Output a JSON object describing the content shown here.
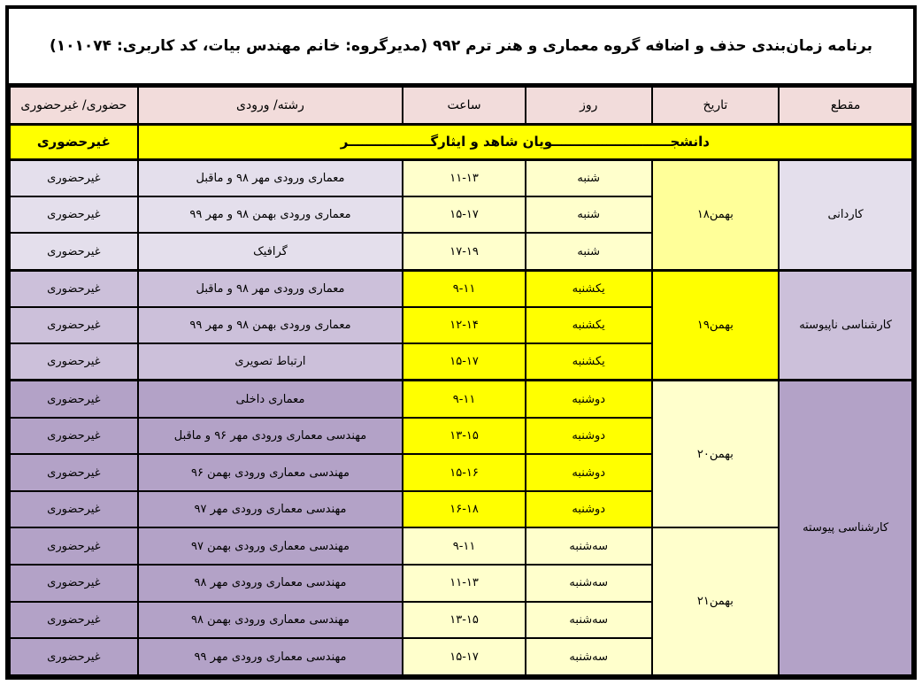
{
  "title": "برنامه زمان‌بندی حذف و اضافه گروه معماری و هنر ترم ۹۹۲ (مدیرگروه: خانم مهندس بیات، کد کاربری: ۱۰۱۰۷۴)",
  "columns": {
    "level": "مقطع",
    "date": "تاریخ",
    "day": "روز",
    "hour": "ساعت",
    "major": "رشته/ ورودی",
    "attendance": "حضوری/ غیرحضوری"
  },
  "special_row": {
    "label": "دانشجــــــــــــــــــــــــــویان شاهد و ایثارگــــــــــــــــــر",
    "attendance": "غیرحضوری"
  },
  "levels": [
    {
      "label": "کاردانی"
    },
    {
      "label": "کارشناسی ناپیوسته"
    },
    {
      "label": "کارشناسی پیوسته"
    }
  ],
  "dates": [
    {
      "label": "۱۸بهمن"
    },
    {
      "label": "۱۹بهمن"
    },
    {
      "label": "۲۰بهمن"
    },
    {
      "label": "۲۱بهمن"
    }
  ],
  "rows": [
    {
      "major": "معماری ورودی مهر ۹۸ و ماقبل",
      "hour": "۱۱-۱۳",
      "day": "شنبه",
      "attendance": "غیرحضوری"
    },
    {
      "major": "معماری ورودی بهمن ۹۸ و مهر ۹۹",
      "hour": "۱۵-۱۷",
      "day": "شنبه",
      "attendance": "غیرحضوری"
    },
    {
      "major": "گرافیک",
      "hour": "۱۷-۱۹",
      "day": "شنبه",
      "attendance": "غیرحضوری"
    },
    {
      "major": "معماری ورودی مهر ۹۸ و ماقبل",
      "hour": "۹-۱۱",
      "day": "یکشنبه",
      "attendance": "غیرحضوری"
    },
    {
      "major": "معماری ورودی بهمن ۹۸ و مهر ۹۹",
      "hour": "۱۲-۱۴",
      "day": "یکشنبه",
      "attendance": "غیرحضوری"
    },
    {
      "major": "ارتباط تصویری",
      "hour": "۱۵-۱۷",
      "day": "یکشنبه",
      "attendance": "غیرحضوری"
    },
    {
      "major": "معماری داخلی",
      "hour": "۹-۱۱",
      "day": "دوشنبه",
      "attendance": "غیرحضوری"
    },
    {
      "major": "مهندسی معماری ورودی مهر ۹۶ و ماقبل",
      "hour": "۱۳-۱۵",
      "day": "دوشنبه",
      "attendance": "غیرحضوری"
    },
    {
      "major": "مهندسی معماری ورودی بهمن ۹۶",
      "hour": "۱۵-۱۶",
      "day": "دوشنبه",
      "attendance": "غیرحضوری"
    },
    {
      "major": "مهندسی معماری ورودی  مهر ۹۷",
      "hour": "۱۶-۱۸",
      "day": "دوشنبه",
      "attendance": "غیرحضوری"
    },
    {
      "major": "مهندسی معماری ورودی بهمن ۹۷",
      "hour": "۹-۱۱",
      "day": "سه‌شنبه",
      "attendance": "غیرحضوری"
    },
    {
      "major": "مهندسی معماری ورودی  مهر ۹۸",
      "hour": "۱۱-۱۳",
      "day": "سه‌شنبه",
      "attendance": "غیرحضوری"
    },
    {
      "major": "مهندسی معماری ورودی بهمن ۹۸",
      "hour": "۱۳-۱۵",
      "day": "سه‌شنبه",
      "attendance": "غیرحضوری"
    },
    {
      "major": "مهندسی معماری ورودی مهر ۹۹",
      "hour": "۱۵-۱۷",
      "day": "سه‌شنبه",
      "attendance": "غیرحضوری"
    }
  ],
  "colors": {
    "bright-yellow": "#FFFF00",
    "pale-yellow": "#FFFFCC",
    "soft-yellow": "#FFFF99",
    "header-pink": "#F2DCDB",
    "purple-light": "#E4DFEC",
    "purple-mid": "#CCC0DA",
    "purple-dark": "#B3A2C7",
    "border-black": "#000000"
  }
}
